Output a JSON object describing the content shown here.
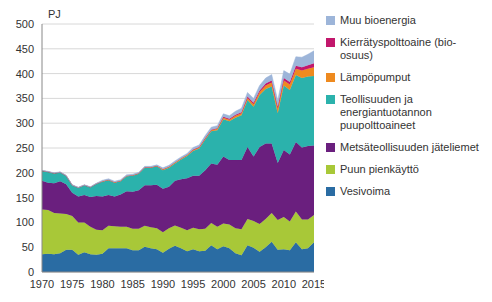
{
  "chart_data": {
    "type": "area",
    "stacked": true,
    "grid": true,
    "legend": "right",
    "y_label": "PJ",
    "x": [
      1970,
      1971,
      1972,
      1973,
      1974,
      1975,
      1976,
      1977,
      1978,
      1979,
      1980,
      1981,
      1982,
      1983,
      1984,
      1985,
      1986,
      1987,
      1988,
      1989,
      1990,
      1991,
      1992,
      1993,
      1994,
      1995,
      1996,
      1997,
      1998,
      1999,
      2000,
      2001,
      2002,
      2003,
      2004,
      2005,
      2006,
      2007,
      2008,
      2009,
      2010,
      2011,
      2012,
      2013,
      2014,
      2015
    ],
    "xlim": [
      1970,
      2015
    ],
    "xticks": [
      1970,
      1975,
      1980,
      1985,
      1990,
      1995,
      2000,
      2005,
      2010,
      2015
    ],
    "ylim": [
      0,
      500
    ],
    "yticks": [
      0,
      50,
      100,
      150,
      200,
      250,
      300,
      350,
      400,
      450,
      500
    ],
    "series": [
      {
        "name": "Vesivoima",
        "color": "#2a6ca3",
        "values": [
          36,
          37,
          36,
          38,
          45,
          45,
          35,
          40,
          36,
          35,
          37,
          48,
          48,
          48,
          48,
          44,
          44,
          51,
          48,
          46,
          39,
          47,
          53,
          48,
          42,
          46,
          42,
          43,
          54,
          46,
          52,
          48,
          38,
          34,
          54,
          49,
          41,
          50,
          61,
          45,
          46,
          44,
          60,
          46,
          48,
          60
        ]
      },
      {
        "name": "Puun pienkäyttö",
        "color": "#a8c838",
        "values": [
          90,
          88,
          83,
          80,
          72,
          68,
          65,
          60,
          55,
          50,
          47,
          45,
          44,
          43,
          43,
          43,
          43,
          42,
          42,
          42,
          41,
          41,
          41,
          41,
          42,
          43,
          44,
          44,
          45,
          45,
          46,
          48,
          50,
          52,
          53,
          54,
          56,
          57,
          58,
          60,
          65,
          58,
          62,
          60,
          58,
          55
        ]
      },
      {
        "name": "Metsäteollisuuden jäteliemet",
        "color": "#6a1f7e",
        "values": [
          58,
          55,
          60,
          65,
          60,
          47,
          52,
          55,
          60,
          68,
          68,
          62,
          60,
          65,
          72,
          75,
          78,
          82,
          85,
          88,
          88,
          84,
          90,
          98,
          105,
          105,
          108,
          118,
          120,
          125,
          135,
          130,
          138,
          140,
          145,
          130,
          155,
          152,
          140,
          115,
          135,
          135,
          140,
          145,
          148,
          140
        ]
      },
      {
        "name": "Teollisuuden ja energiantuotannon puupolttoaineet",
        "color": "#2bb2ac",
        "values": [
          20,
          22,
          20,
          18,
          17,
          15,
          18,
          20,
          20,
          25,
          30,
          30,
          28,
          27,
          30,
          32,
          33,
          35,
          35,
          37,
          37,
          38,
          35,
          40,
          45,
          50,
          55,
          62,
          65,
          70,
          75,
          78,
          85,
          90,
          95,
          100,
          105,
          110,
          115,
          100,
          130,
          130,
          135,
          140,
          140,
          140
        ]
      },
      {
        "name": "Lämpöpumput",
        "color": "#ee8a1f",
        "values": [
          0,
          0,
          0,
          0,
          0,
          0,
          0,
          0,
          0,
          0,
          1,
          1,
          1,
          1,
          1,
          1,
          1,
          1,
          1,
          1,
          2,
          2,
          2,
          2,
          2,
          2,
          2,
          2,
          2,
          3,
          3,
          3,
          4,
          4,
          4,
          5,
          6,
          7,
          8,
          9,
          10,
          11,
          13,
          15,
          16,
          18
        ]
      },
      {
        "name": "Kierrätyspolttoaine (bio-osuus)",
        "color": "#c2176c",
        "values": [
          0,
          0,
          0,
          0,
          0,
          0,
          0,
          0,
          0,
          0,
          0,
          0,
          0,
          0,
          0,
          0,
          0,
          0,
          0,
          0,
          0,
          0,
          0,
          0,
          0,
          1,
          1,
          1,
          1,
          1,
          2,
          2,
          2,
          2,
          3,
          3,
          3,
          4,
          4,
          4,
          5,
          5,
          6,
          7,
          7,
          8
        ]
      },
      {
        "name": "Muu bioenergia",
        "color": "#9db5d9",
        "values": [
          1,
          1,
          1,
          1,
          1,
          1,
          1,
          1,
          1,
          1,
          2,
          2,
          2,
          2,
          2,
          2,
          2,
          2,
          2,
          2,
          3,
          3,
          3,
          3,
          3,
          4,
          4,
          5,
          5,
          5,
          6,
          6,
          7,
          8,
          8,
          9,
          10,
          11,
          12,
          13,
          15,
          16,
          18,
          20,
          22,
          25
        ]
      }
    ]
  }
}
